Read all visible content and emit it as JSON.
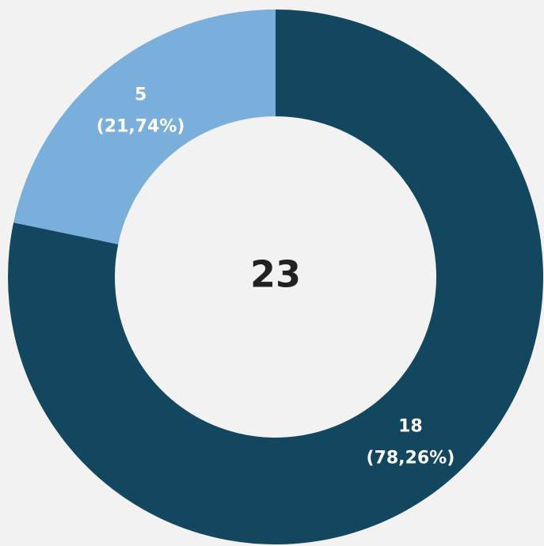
{
  "chart_data": {
    "type": "donut",
    "categories": [
      null,
      null
    ],
    "values": [
      18,
      5
    ],
    "percent_labels": [
      "(78,26%)",
      "(21,74%)"
    ],
    "colors": [
      "#12475f",
      "#7aafdc"
    ],
    "total": 23
  }
}
